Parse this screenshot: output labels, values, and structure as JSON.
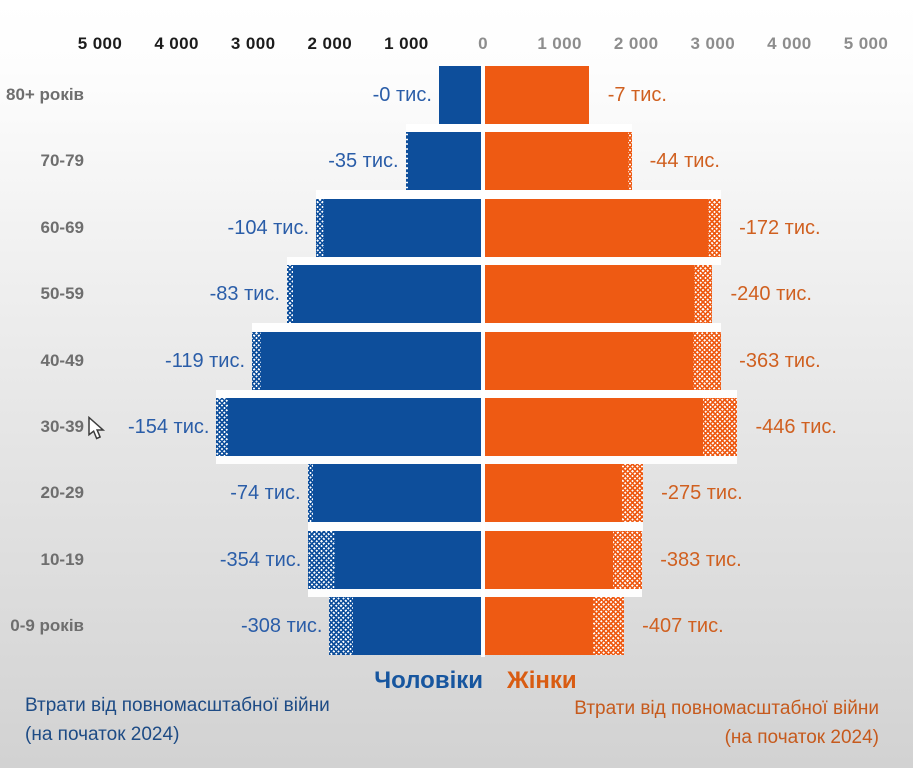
{
  "legend": {
    "men": "Чоловіки",
    "women": "Жінки"
  },
  "footnotes": {
    "left": {
      "line1": "Втрати від повномасштабної війни",
      "line2": "(на початок 2024)"
    },
    "right": {
      "line1": "Втрати від повномасштабної війни",
      "line2": "(на початок 2024)"
    }
  },
  "colors": {
    "men_bar": "#0d4e9b",
    "women_bar": "#ee5a13",
    "men_label": "#2a5da8",
    "women_label": "#d06020",
    "axis_left": "#1c1c1c",
    "axis_right": "#8d8d8d",
    "age_label": "#6e6e6e"
  },
  "chart_data": {
    "type": "bar",
    "subtype": "population-pyramid",
    "title": "",
    "categories": [
      "80+ років",
      "70-79",
      "60-69",
      "50-59",
      "40-49",
      "30-39",
      "20-29",
      "10-19",
      "0-9 років"
    ],
    "x_axis": {
      "tick_labels": [
        "5 000",
        "4 000",
        "3 000",
        "2 000",
        "1 000",
        "0",
        "1 000",
        "2 000",
        "3 000",
        "4 000",
        "5 000"
      ],
      "tick_values_thousands": [
        -5000,
        -4000,
        -3000,
        -2000,
        -1000,
        0,
        1000,
        2000,
        3000,
        4000,
        5000
      ],
      "xlim_thousands": [
        -5500,
        5500
      ],
      "grid": false
    },
    "series": [
      {
        "name": "Чоловіки",
        "side": "left",
        "population_thousands": [
          550,
          950,
          2050,
          2450,
          2870,
          3300,
          2190,
          1900,
          1670
        ],
        "war_losses_thousands": [
          0,
          35,
          104,
          83,
          119,
          154,
          74,
          354,
          308
        ],
        "loss_labels": [
          "-0 тис.",
          "-35 тис.",
          "-104 тис.",
          "-83 тис.",
          "-119 тис.",
          "-154 тис.",
          "-74 тис.",
          "-354 тис.",
          "-308 тис."
        ]
      },
      {
        "name": "Жінки",
        "side": "right",
        "population_thousands": [
          1360,
          1870,
          2910,
          2730,
          2720,
          2850,
          1790,
          1670,
          1410
        ],
        "war_losses_thousands": [
          7,
          44,
          172,
          240,
          363,
          446,
          275,
          383,
          407
        ],
        "loss_labels": [
          "-7 тис.",
          "-44 тис.",
          "-172 тис.",
          "-240 тис.",
          "-363 тис.",
          "-446 тис.",
          "-275 тис.",
          "-383 тис.",
          "-407 тис."
        ]
      }
    ],
    "annotations": {
      "losses_note_men": "Втрати від повномасштабної війни (на початок 2024)",
      "losses_note_women": "Втрати від повномасштабної війни (на початок 2024)"
    },
    "legend_position": "bottom"
  }
}
